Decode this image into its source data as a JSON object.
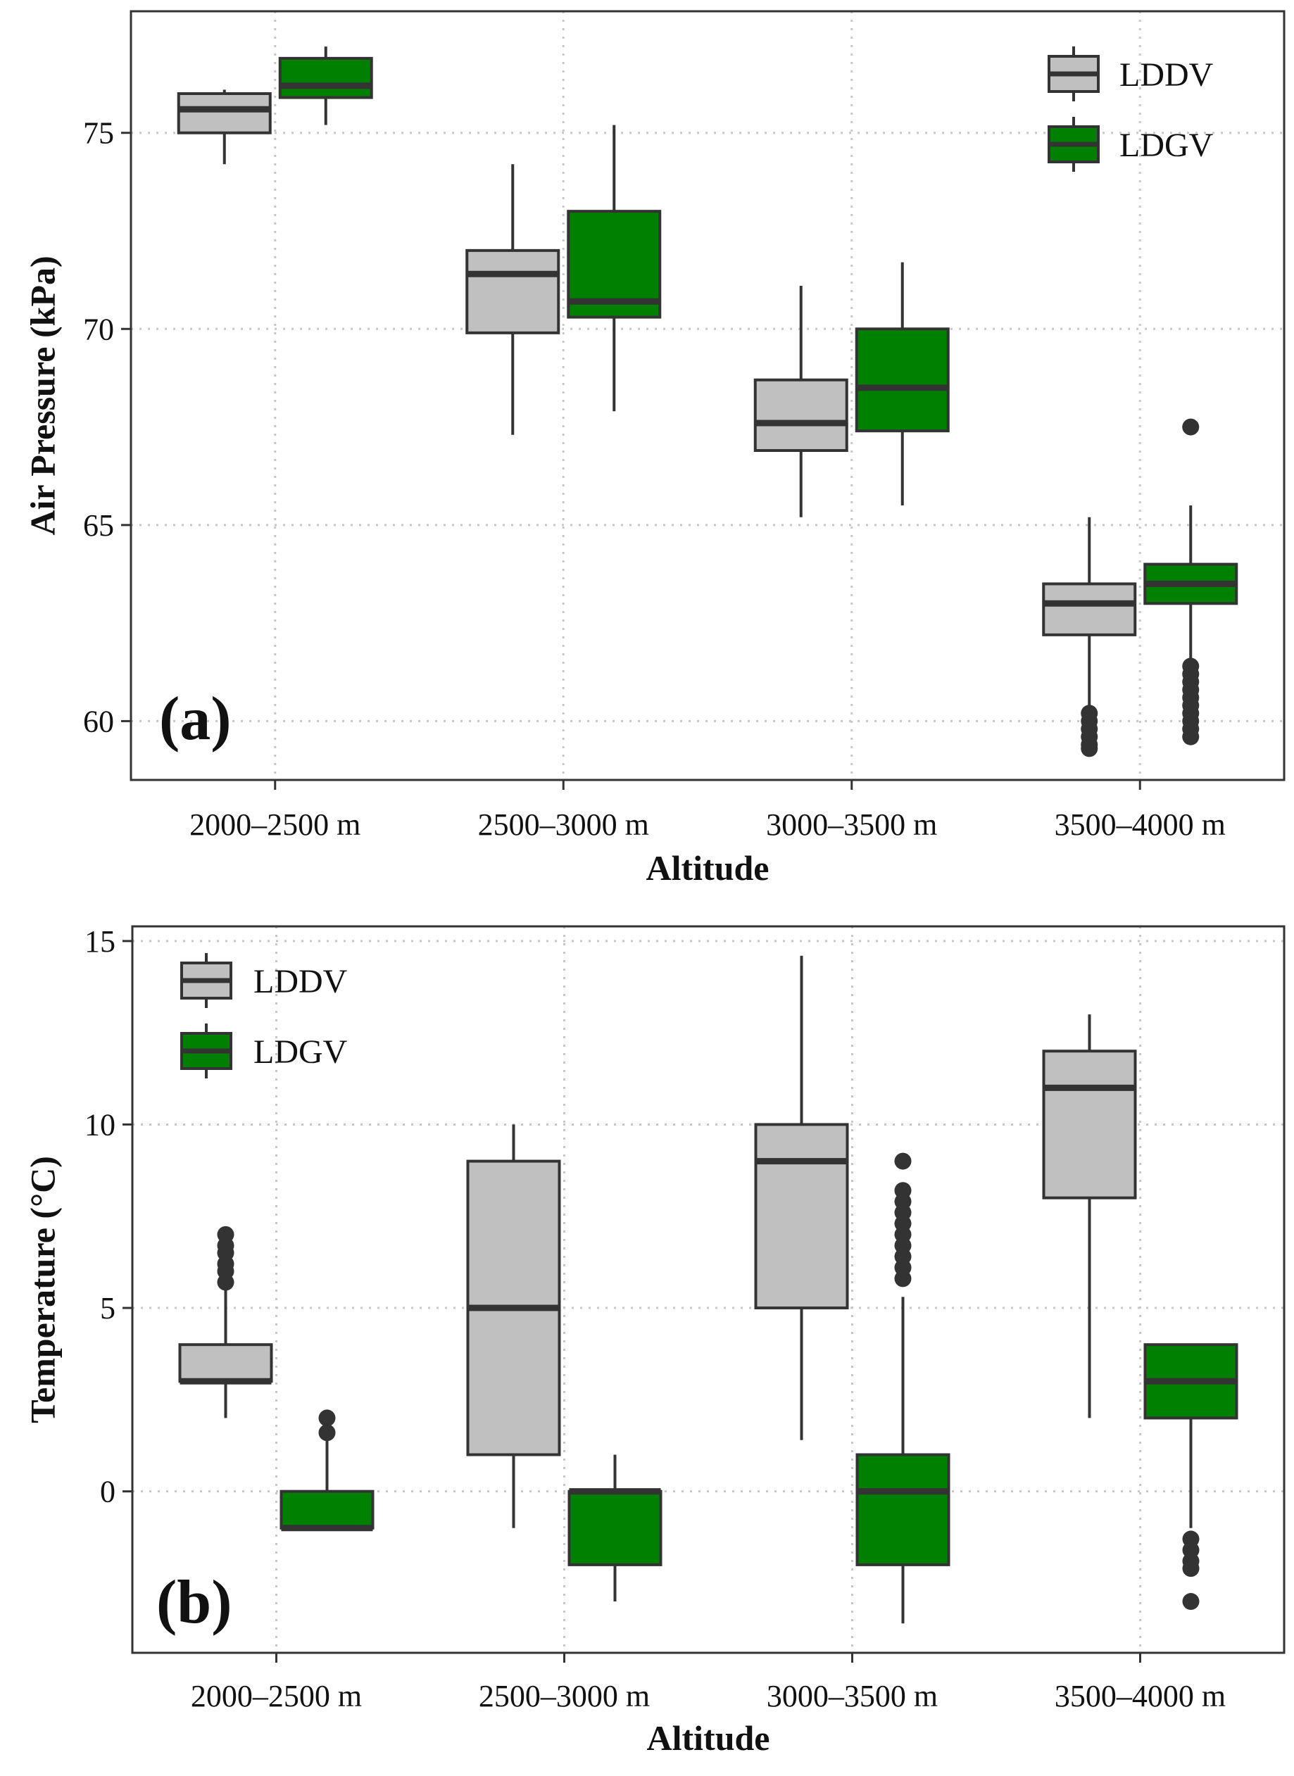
{
  "colors": {
    "LDDV": "#c0c0c0",
    "LDGV": "#008000",
    "box_stroke": "#333333",
    "grid": "#c8c8c8",
    "frame": "#333333"
  },
  "chart_data": [
    {
      "type": "boxplot",
      "panel_label": "(a)",
      "xlabel": "Altitude",
      "ylabel": "Air Pressure (kPa)",
      "ylim": [
        58.5,
        78.1
      ],
      "yticks": [
        60,
        65,
        70,
        75
      ],
      "ytick_labels": [
        "60",
        "65",
        "70",
        "75"
      ],
      "categories": [
        "2000–2500 m",
        "2500–3000 m",
        "3000–3500 m",
        "3500–4000 m"
      ],
      "legend": {
        "position": "top-right",
        "entries": [
          "LDDV",
          "LDGV"
        ]
      },
      "series": [
        {
          "name": "LDDV",
          "boxes": [
            {
              "whisker_low": 74.2,
              "q1": 75.0,
              "median": 75.6,
              "q3": 76.0,
              "whisker_high": 76.1,
              "outliers": []
            },
            {
              "whisker_low": 67.3,
              "q1": 69.9,
              "median": 71.4,
              "q3": 72.0,
              "whisker_high": 74.2,
              "outliers": []
            },
            {
              "whisker_low": 65.2,
              "q1": 66.9,
              "median": 67.6,
              "q3": 68.7,
              "whisker_high": 71.1,
              "outliers": []
            },
            {
              "whisker_low": 60.4,
              "q1": 62.2,
              "median": 63.0,
              "q3": 63.5,
              "whisker_high": 65.2,
              "outliers": [
                60.2,
                60.0,
                59.8,
                59.6,
                59.4,
                59.3
              ]
            }
          ]
        },
        {
          "name": "LDGV",
          "boxes": [
            {
              "whisker_low": 75.2,
              "q1": 75.9,
              "median": 76.2,
              "q3": 76.9,
              "whisker_high": 77.2,
              "outliers": []
            },
            {
              "whisker_low": 67.9,
              "q1": 70.3,
              "median": 70.7,
              "q3": 73.0,
              "whisker_high": 75.2,
              "outliers": []
            },
            {
              "whisker_low": 65.5,
              "q1": 67.4,
              "median": 68.5,
              "q3": 70.0,
              "whisker_high": 71.7,
              "outliers": []
            },
            {
              "whisker_low": 61.5,
              "q1": 63.0,
              "median": 63.5,
              "q3": 64.0,
              "whisker_high": 65.5,
              "outliers": [
                67.5,
                61.4,
                61.2,
                61.0,
                60.8,
                60.6,
                60.4,
                60.2,
                60.0,
                59.8,
                59.6
              ]
            }
          ]
        }
      ]
    },
    {
      "type": "boxplot",
      "panel_label": "(b)",
      "xlabel": "Altitude",
      "ylabel": "Temperature (°C)",
      "ylim": [
        -4.4,
        15.4
      ],
      "yticks": [
        0,
        5,
        10,
        15
      ],
      "ytick_labels": [
        "0",
        "5",
        "10",
        "15"
      ],
      "categories": [
        "2000–2500 m",
        "2500–3000 m",
        "3000–3500 m",
        "3500–4000 m"
      ],
      "legend": {
        "position": "top-left",
        "entries": [
          "LDDV",
          "LDGV"
        ]
      },
      "series": [
        {
          "name": "LDDV",
          "boxes": [
            {
              "whisker_low": 2.0,
              "q1": 3.0,
              "median": 3.0,
              "q3": 4.0,
              "whisker_high": 5.5,
              "outliers": [
                5.7,
                6.0,
                6.2,
                6.5,
                6.7,
                7.0
              ]
            },
            {
              "whisker_low": -1.0,
              "q1": 1.0,
              "median": 5.0,
              "q3": 9.0,
              "whisker_high": 10.0,
              "outliers": []
            },
            {
              "whisker_low": 1.4,
              "q1": 5.0,
              "median": 9.0,
              "q3": 10.0,
              "whisker_high": 14.6,
              "outliers": []
            },
            {
              "whisker_low": 2.0,
              "q1": 8.0,
              "median": 11.0,
              "q3": 12.0,
              "whisker_high": 13.0,
              "outliers": []
            }
          ]
        },
        {
          "name": "LDGV",
          "boxes": [
            {
              "whisker_low": -1.0,
              "q1": -1.0,
              "median": -1.0,
              "q3": 0.0,
              "whisker_high": 1.5,
              "outliers": [
                1.6,
                2.0
              ]
            },
            {
              "whisker_low": -3.0,
              "q1": -2.0,
              "median": 0.0,
              "q3": 0.0,
              "whisker_high": 1.0,
              "outliers": []
            },
            {
              "whisker_low": -3.6,
              "q1": -2.0,
              "median": 0.0,
              "q3": 1.0,
              "whisker_high": 5.3,
              "outliers": [
                5.8,
                6.1,
                6.4,
                6.7,
                7.0,
                7.3,
                7.6,
                7.9,
                8.2,
                9.0
              ]
            },
            {
              "whisker_low": -1.0,
              "q1": 2.0,
              "median": 3.0,
              "q3": 4.0,
              "whisker_high": 4.0,
              "outliers": [
                -1.3,
                -1.6,
                -1.9,
                -2.1,
                -3.0
              ]
            }
          ]
        }
      ]
    }
  ]
}
